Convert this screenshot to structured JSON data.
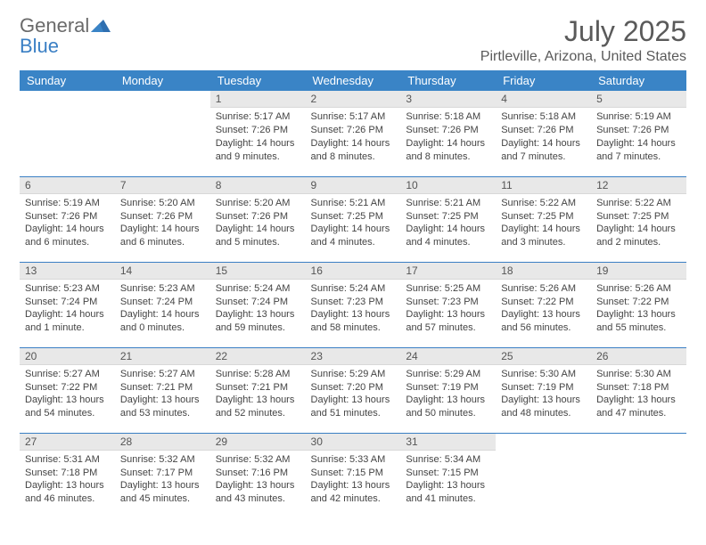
{
  "logo": {
    "word1": "General",
    "word2": "Blue"
  },
  "title": "July 2025",
  "location": "Pirtleville, Arizona, United States",
  "colors": {
    "header_bg": "#3a84c6",
    "header_text": "#ffffff",
    "daynum_bg": "#e8e8e8",
    "rule": "#3a7fc4",
    "title_text": "#5a5a5a",
    "logo_gray": "#6a6a6a",
    "logo_blue": "#3a7fc4"
  },
  "day_labels": [
    "Sunday",
    "Monday",
    "Tuesday",
    "Wednesday",
    "Thursday",
    "Friday",
    "Saturday"
  ],
  "weeks": [
    [
      {
        "n": "",
        "sr": "",
        "ss": "",
        "dl": ""
      },
      {
        "n": "",
        "sr": "",
        "ss": "",
        "dl": ""
      },
      {
        "n": "1",
        "sr": "Sunrise: 5:17 AM",
        "ss": "Sunset: 7:26 PM",
        "dl": "Daylight: 14 hours and 9 minutes."
      },
      {
        "n": "2",
        "sr": "Sunrise: 5:17 AM",
        "ss": "Sunset: 7:26 PM",
        "dl": "Daylight: 14 hours and 8 minutes."
      },
      {
        "n": "3",
        "sr": "Sunrise: 5:18 AM",
        "ss": "Sunset: 7:26 PM",
        "dl": "Daylight: 14 hours and 8 minutes."
      },
      {
        "n": "4",
        "sr": "Sunrise: 5:18 AM",
        "ss": "Sunset: 7:26 PM",
        "dl": "Daylight: 14 hours and 7 minutes."
      },
      {
        "n": "5",
        "sr": "Sunrise: 5:19 AM",
        "ss": "Sunset: 7:26 PM",
        "dl": "Daylight: 14 hours and 7 minutes."
      }
    ],
    [
      {
        "n": "6",
        "sr": "Sunrise: 5:19 AM",
        "ss": "Sunset: 7:26 PM",
        "dl": "Daylight: 14 hours and 6 minutes."
      },
      {
        "n": "7",
        "sr": "Sunrise: 5:20 AM",
        "ss": "Sunset: 7:26 PM",
        "dl": "Daylight: 14 hours and 6 minutes."
      },
      {
        "n": "8",
        "sr": "Sunrise: 5:20 AM",
        "ss": "Sunset: 7:26 PM",
        "dl": "Daylight: 14 hours and 5 minutes."
      },
      {
        "n": "9",
        "sr": "Sunrise: 5:21 AM",
        "ss": "Sunset: 7:25 PM",
        "dl": "Daylight: 14 hours and 4 minutes."
      },
      {
        "n": "10",
        "sr": "Sunrise: 5:21 AM",
        "ss": "Sunset: 7:25 PM",
        "dl": "Daylight: 14 hours and 4 minutes."
      },
      {
        "n": "11",
        "sr": "Sunrise: 5:22 AM",
        "ss": "Sunset: 7:25 PM",
        "dl": "Daylight: 14 hours and 3 minutes."
      },
      {
        "n": "12",
        "sr": "Sunrise: 5:22 AM",
        "ss": "Sunset: 7:25 PM",
        "dl": "Daylight: 14 hours and 2 minutes."
      }
    ],
    [
      {
        "n": "13",
        "sr": "Sunrise: 5:23 AM",
        "ss": "Sunset: 7:24 PM",
        "dl": "Daylight: 14 hours and 1 minute."
      },
      {
        "n": "14",
        "sr": "Sunrise: 5:23 AM",
        "ss": "Sunset: 7:24 PM",
        "dl": "Daylight: 14 hours and 0 minutes."
      },
      {
        "n": "15",
        "sr": "Sunrise: 5:24 AM",
        "ss": "Sunset: 7:24 PM",
        "dl": "Daylight: 13 hours and 59 minutes."
      },
      {
        "n": "16",
        "sr": "Sunrise: 5:24 AM",
        "ss": "Sunset: 7:23 PM",
        "dl": "Daylight: 13 hours and 58 minutes."
      },
      {
        "n": "17",
        "sr": "Sunrise: 5:25 AM",
        "ss": "Sunset: 7:23 PM",
        "dl": "Daylight: 13 hours and 57 minutes."
      },
      {
        "n": "18",
        "sr": "Sunrise: 5:26 AM",
        "ss": "Sunset: 7:22 PM",
        "dl": "Daylight: 13 hours and 56 minutes."
      },
      {
        "n": "19",
        "sr": "Sunrise: 5:26 AM",
        "ss": "Sunset: 7:22 PM",
        "dl": "Daylight: 13 hours and 55 minutes."
      }
    ],
    [
      {
        "n": "20",
        "sr": "Sunrise: 5:27 AM",
        "ss": "Sunset: 7:22 PM",
        "dl": "Daylight: 13 hours and 54 minutes."
      },
      {
        "n": "21",
        "sr": "Sunrise: 5:27 AM",
        "ss": "Sunset: 7:21 PM",
        "dl": "Daylight: 13 hours and 53 minutes."
      },
      {
        "n": "22",
        "sr": "Sunrise: 5:28 AM",
        "ss": "Sunset: 7:21 PM",
        "dl": "Daylight: 13 hours and 52 minutes."
      },
      {
        "n": "23",
        "sr": "Sunrise: 5:29 AM",
        "ss": "Sunset: 7:20 PM",
        "dl": "Daylight: 13 hours and 51 minutes."
      },
      {
        "n": "24",
        "sr": "Sunrise: 5:29 AM",
        "ss": "Sunset: 7:19 PM",
        "dl": "Daylight: 13 hours and 50 minutes."
      },
      {
        "n": "25",
        "sr": "Sunrise: 5:30 AM",
        "ss": "Sunset: 7:19 PM",
        "dl": "Daylight: 13 hours and 48 minutes."
      },
      {
        "n": "26",
        "sr": "Sunrise: 5:30 AM",
        "ss": "Sunset: 7:18 PM",
        "dl": "Daylight: 13 hours and 47 minutes."
      }
    ],
    [
      {
        "n": "27",
        "sr": "Sunrise: 5:31 AM",
        "ss": "Sunset: 7:18 PM",
        "dl": "Daylight: 13 hours and 46 minutes."
      },
      {
        "n": "28",
        "sr": "Sunrise: 5:32 AM",
        "ss": "Sunset: 7:17 PM",
        "dl": "Daylight: 13 hours and 45 minutes."
      },
      {
        "n": "29",
        "sr": "Sunrise: 5:32 AM",
        "ss": "Sunset: 7:16 PM",
        "dl": "Daylight: 13 hours and 43 minutes."
      },
      {
        "n": "30",
        "sr": "Sunrise: 5:33 AM",
        "ss": "Sunset: 7:15 PM",
        "dl": "Daylight: 13 hours and 42 minutes."
      },
      {
        "n": "31",
        "sr": "Sunrise: 5:34 AM",
        "ss": "Sunset: 7:15 PM",
        "dl": "Daylight: 13 hours and 41 minutes."
      },
      {
        "n": "",
        "sr": "",
        "ss": "",
        "dl": ""
      },
      {
        "n": "",
        "sr": "",
        "ss": "",
        "dl": ""
      }
    ]
  ]
}
